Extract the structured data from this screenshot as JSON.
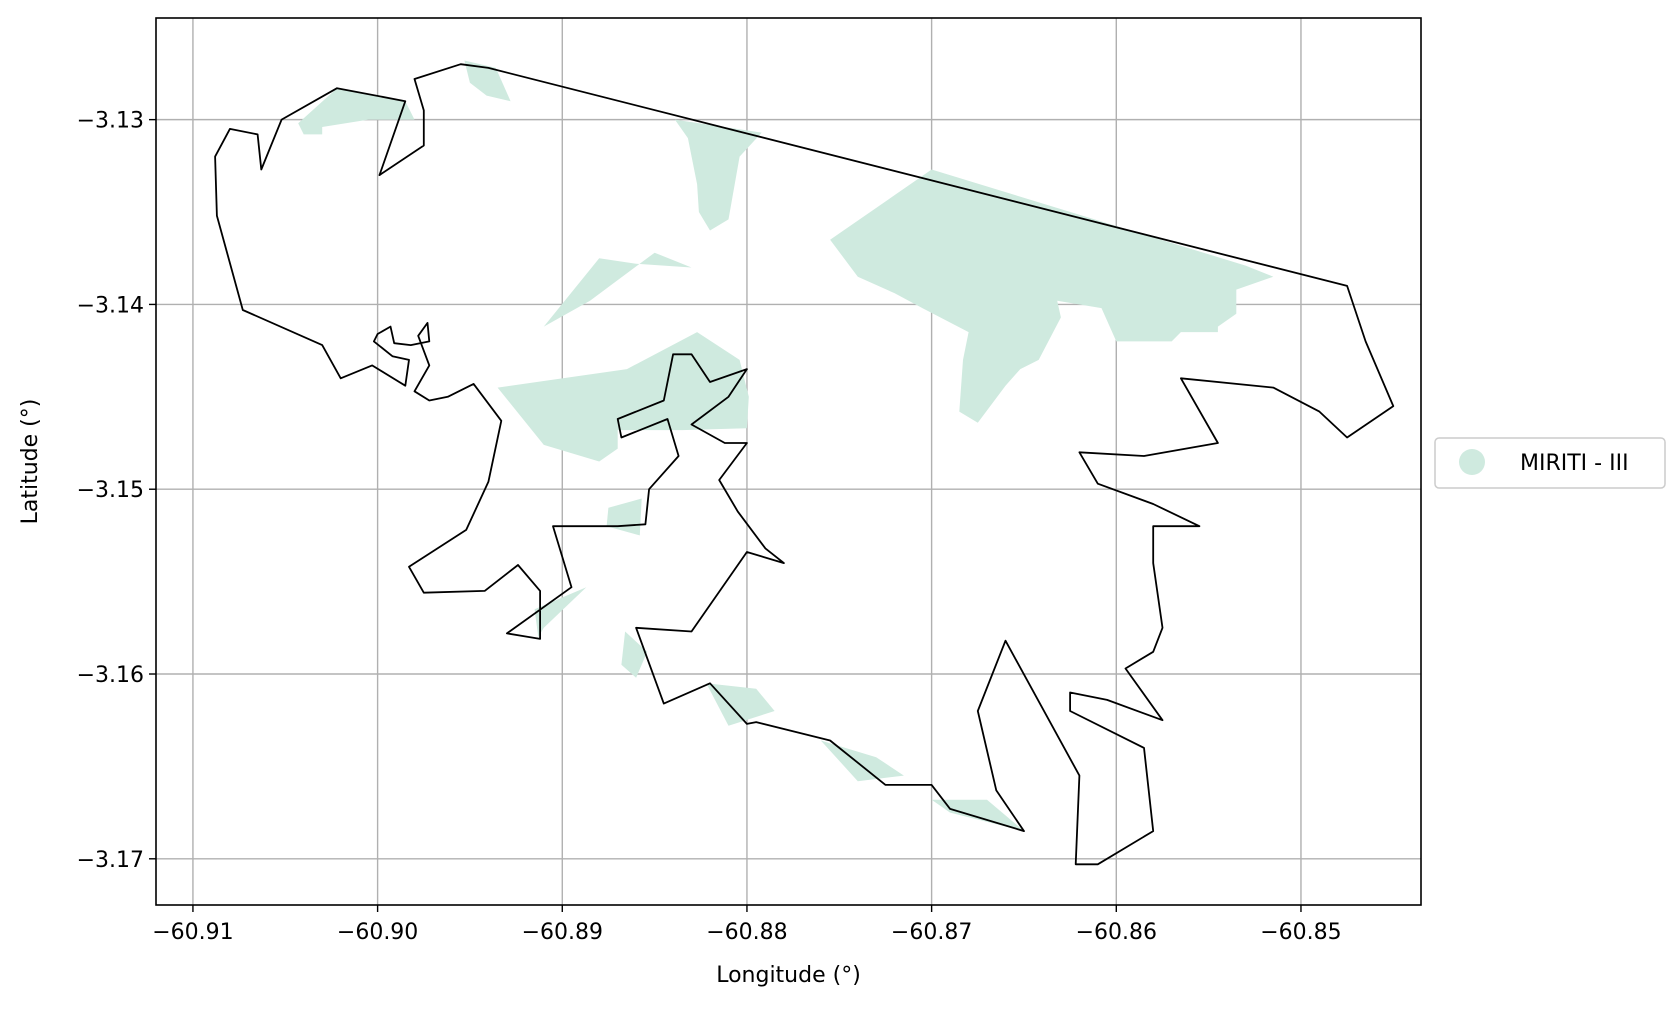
{
  "chart_data": {
    "type": "map",
    "xlabel": "Longitude (°)",
    "ylabel": "Latitude (°)",
    "xlim": [
      -60.912,
      -60.8435
    ],
    "ylim": [
      -3.1725,
      -3.1245
    ],
    "xticks": [
      -60.91,
      -60.9,
      -60.89,
      -60.88,
      -60.87,
      -60.86,
      -60.85
    ],
    "xtick_labels": [
      "−60.91",
      "−60.90",
      "−60.89",
      "−60.88",
      "−60.87",
      "−60.86",
      "−60.85"
    ],
    "yticks": [
      -3.13,
      -3.14,
      -3.15,
      -3.16,
      -3.17
    ],
    "ytick_labels": [
      "−3.13",
      "−3.14",
      "−3.15",
      "−3.16",
      "−3.17"
    ],
    "grid": true,
    "legend": {
      "placement": "right-outside",
      "entries": [
        {
          "label": "MIRITI - III",
          "color": "#cfeadf"
        }
      ]
    },
    "colors": {
      "fill": "#cfeadf",
      "outline": "#000000",
      "grid": "#b0b0b0"
    },
    "fill_areas": [
      [
        [
          -60.9043,
          -3.1302
        ],
        [
          -60.9022,
          -3.1283
        ],
        [
          -60.8985,
          -3.129
        ],
        [
          -60.898,
          -3.13
        ],
        [
          -60.9005,
          -3.13
        ],
        [
          -60.903,
          -3.1304
        ],
        [
          -60.903,
          -3.1308
        ],
        [
          -60.904,
          -3.1308
        ]
      ],
      [
        [
          -60.8953,
          -3.1268
        ],
        [
          -60.8936,
          -3.1272
        ],
        [
          -60.8928,
          -3.129
        ],
        [
          -60.8941,
          -3.1287
        ],
        [
          -60.895,
          -3.128
        ]
      ],
      [
        [
          -60.8839,
          -3.13
        ],
        [
          -60.8792,
          -3.1307
        ],
        [
          -60.8804,
          -3.132
        ],
        [
          -60.881,
          -3.1354
        ],
        [
          -60.882,
          -3.136
        ],
        [
          -60.8826,
          -3.135
        ],
        [
          -60.8827,
          -3.1335
        ],
        [
          -60.8832,
          -3.131
        ]
      ],
      [
        [
          -60.8755,
          -3.1365
        ],
        [
          -60.87,
          -3.1327
        ],
        [
          -60.853,
          -3.1379
        ],
        [
          -60.8515,
          -3.1385
        ],
        [
          -60.8535,
          -3.1392
        ],
        [
          -60.8535,
          -3.1405
        ],
        [
          -60.8545,
          -3.1412
        ],
        [
          -60.8545,
          -3.1415
        ],
        [
          -60.8565,
          -3.1415
        ],
        [
          -60.857,
          -3.142
        ],
        [
          -60.86,
          -3.142
        ],
        [
          -60.8608,
          -3.1402
        ],
        [
          -60.8632,
          -3.1398
        ],
        [
          -60.863,
          -3.1407
        ],
        [
          -60.8642,
          -3.143
        ],
        [
          -60.8652,
          -3.1435
        ],
        [
          -60.866,
          -3.1444
        ],
        [
          -60.8675,
          -3.1464
        ],
        [
          -60.8685,
          -3.1458
        ],
        [
          -60.8683,
          -3.143
        ],
        [
          -60.868,
          -3.1415
        ],
        [
          -60.8705,
          -3.1402
        ],
        [
          -60.872,
          -3.1394
        ],
        [
          -60.874,
          -3.1385
        ],
        [
          -60.8755,
          -3.1365
        ]
      ],
      [
        [
          -60.891,
          -3.1412
        ],
        [
          -60.888,
          -3.1375
        ],
        [
          -60.886,
          -3.1378
        ],
        [
          -60.883,
          -3.138
        ],
        [
          -60.885,
          -3.1372
        ],
        [
          -60.8885,
          -3.1398
        ]
      ],
      [
        [
          -60.8935,
          -3.1445
        ],
        [
          -60.8865,
          -3.1435
        ],
        [
          -60.8827,
          -3.1415
        ],
        [
          -60.8804,
          -3.143
        ],
        [
          -60.8799,
          -3.145
        ],
        [
          -60.88,
          -3.1467
        ],
        [
          -60.8835,
          -3.1468
        ],
        [
          -60.887,
          -3.1468
        ],
        [
          -60.887,
          -3.1478
        ],
        [
          -60.888,
          -3.1485
        ],
        [
          -60.891,
          -3.1476
        ]
      ],
      [
        [
          -60.8875,
          -3.151
        ],
        [
          -60.8857,
          -3.1505
        ],
        [
          -60.8858,
          -3.1525
        ],
        [
          -60.8876,
          -3.152
        ]
      ],
      [
        [
          -60.891,
          -3.1575
        ],
        [
          -60.8887,
          -3.1553
        ],
        [
          -60.8915,
          -3.1565
        ],
        [
          -60.8913,
          -3.158
        ]
      ],
      [
        [
          -60.8866,
          -3.1577
        ],
        [
          -60.8854,
          -3.1588
        ],
        [
          -60.886,
          -3.1602
        ],
        [
          -60.8868,
          -3.1595
        ]
      ],
      [
        [
          -60.8822,
          -3.1605
        ],
        [
          -60.8795,
          -3.1608
        ],
        [
          -60.8785,
          -3.162
        ],
        [
          -60.881,
          -3.1628
        ]
      ],
      [
        [
          -60.876,
          -3.1636
        ],
        [
          -60.873,
          -3.1645
        ],
        [
          -60.8715,
          -3.1655
        ],
        [
          -60.874,
          -3.1658
        ]
      ],
      [
        [
          -60.87,
          -3.1668
        ],
        [
          -60.867,
          -3.1668
        ],
        [
          -60.865,
          -3.1685
        ],
        [
          -60.869,
          -3.1675
        ]
      ]
    ],
    "outline": [
      [
        -60.894,
        -3.1272
      ],
      [
        -60.8475,
        -3.139
      ],
      [
        -60.8465,
        -3.142
      ],
      [
        -60.845,
        -3.1455
      ],
      [
        -60.8475,
        -3.1472
      ],
      [
        -60.849,
        -3.1458
      ],
      [
        -60.8515,
        -3.1445
      ],
      [
        -60.8565,
        -3.144
      ],
      [
        -60.8545,
        -3.1475
      ],
      [
        -60.8585,
        -3.1482
      ],
      [
        -60.862,
        -3.148
      ],
      [
        -60.861,
        -3.1497
      ],
      [
        -60.858,
        -3.1508
      ],
      [
        -60.8555,
        -3.152
      ],
      [
        -60.858,
        -3.152
      ],
      [
        -60.858,
        -3.154
      ],
      [
        -60.8575,
        -3.1575
      ],
      [
        -60.858,
        -3.1588
      ],
      [
        -60.8595,
        -3.1597
      ],
      [
        -60.8575,
        -3.1625
      ],
      [
        -60.8605,
        -3.1614
      ],
      [
        -60.8625,
        -3.161
      ],
      [
        -60.8625,
        -3.162
      ],
      [
        -60.8585,
        -3.164
      ],
      [
        -60.858,
        -3.1685
      ],
      [
        -60.861,
        -3.1703
      ],
      [
        -60.8622,
        -3.1703
      ],
      [
        -60.862,
        -3.1655
      ],
      [
        -60.866,
        -3.1582
      ],
      [
        -60.8675,
        -3.162
      ],
      [
        -60.8665,
        -3.1663
      ],
      [
        -60.865,
        -3.1685
      ],
      [
        -60.869,
        -3.1673
      ],
      [
        -60.87,
        -3.166
      ],
      [
        -60.8725,
        -3.166
      ],
      [
        -60.8755,
        -3.1636
      ],
      [
        -60.8795,
        -3.1626
      ],
      [
        -60.88,
        -3.1627
      ],
      [
        -60.882,
        -3.1605
      ],
      [
        -60.8845,
        -3.1616
      ],
      [
        -60.886,
        -3.1575
      ],
      [
        -60.883,
        -3.1577
      ],
      [
        -60.88,
        -3.1534
      ],
      [
        -60.878,
        -3.154
      ],
      [
        -60.879,
        -3.1532
      ],
      [
        -60.8805,
        -3.1512
      ],
      [
        -60.8815,
        -3.1495
      ],
      [
        -60.88,
        -3.1475
      ],
      [
        -60.8812,
        -3.1475
      ],
      [
        -60.883,
        -3.1465
      ],
      [
        -60.881,
        -3.145
      ],
      [
        -60.88,
        -3.1435
      ],
      [
        -60.882,
        -3.1442
      ],
      [
        -60.883,
        -3.1427
      ],
      [
        -60.884,
        -3.1427
      ],
      [
        -60.8845,
        -3.1452
      ],
      [
        -60.887,
        -3.1462
      ],
      [
        -60.8868,
        -3.1472
      ],
      [
        -60.8843,
        -3.1462
      ],
      [
        -60.8837,
        -3.1482
      ],
      [
        -60.8853,
        -3.15
      ],
      [
        -60.8855,
        -3.1519
      ],
      [
        -60.887,
        -3.152
      ],
      [
        -60.8905,
        -3.152
      ],
      [
        -60.8895,
        -3.1553
      ],
      [
        -60.893,
        -3.1578
      ],
      [
        -60.8912,
        -3.1581
      ],
      [
        -60.8912,
        -3.1555
      ],
      [
        -60.8924,
        -3.1541
      ],
      [
        -60.8942,
        -3.1555
      ],
      [
        -60.8975,
        -3.1556
      ],
      [
        -60.8983,
        -3.1542
      ],
      [
        -60.8952,
        -3.1522
      ],
      [
        -60.894,
        -3.1496
      ],
      [
        -60.8933,
        -3.1463
      ],
      [
        -60.8948,
        -3.1443
      ],
      [
        -60.8962,
        -3.145
      ],
      [
        -60.8972,
        -3.1452
      ],
      [
        -60.898,
        -3.1447
      ],
      [
        -60.8972,
        -3.1433
      ],
      [
        -60.8978,
        -3.1417
      ],
      [
        -60.8973,
        -3.141
      ],
      [
        -60.8972,
        -3.142
      ],
      [
        -60.8982,
        -3.1422
      ],
      [
        -60.8991,
        -3.1421
      ],
      [
        -60.8993,
        -3.1412
      ],
      [
        -60.9,
        -3.1416
      ],
      [
        -60.9002,
        -3.142
      ],
      [
        -60.8992,
        -3.1428
      ],
      [
        -60.8983,
        -3.143
      ],
      [
        -60.8985,
        -3.1444
      ],
      [
        -60.9003,
        -3.1433
      ],
      [
        -60.902,
        -3.144
      ],
      [
        -60.903,
        -3.1422
      ],
      [
        -60.9073,
        -3.1403
      ],
      [
        -60.9087,
        -3.1352
      ],
      [
        -60.9088,
        -3.132
      ],
      [
        -60.908,
        -3.1305
      ],
      [
        -60.9065,
        -3.1308
      ],
      [
        -60.9063,
        -3.1327
      ],
      [
        -60.9052,
        -3.13
      ],
      [
        -60.9022,
        -3.1283
      ],
      [
        -60.8985,
        -3.129
      ],
      [
        -60.8999,
        -3.133
      ],
      [
        -60.8975,
        -3.1314
      ],
      [
        -60.8975,
        -3.1295
      ],
      [
        -60.898,
        -3.1278
      ],
      [
        -60.8955,
        -3.127
      ],
      [
        -60.894,
        -3.1272
      ]
    ]
  }
}
